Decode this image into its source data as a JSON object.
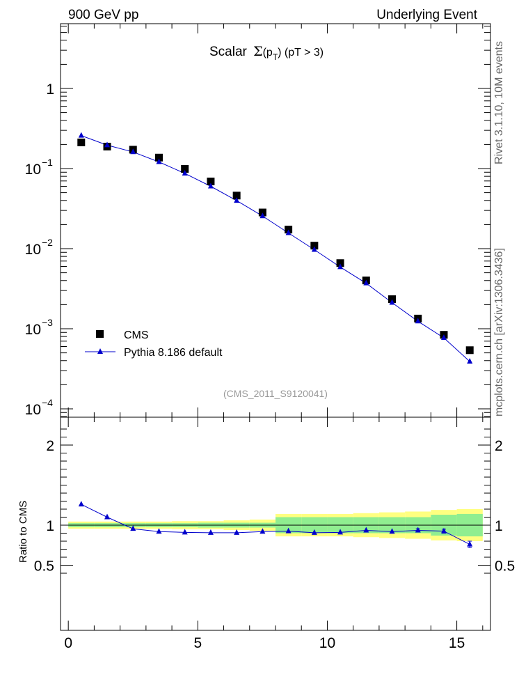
{
  "header": {
    "left_title": "900 GeV pp",
    "right_title": "Underlying Event"
  },
  "side_labels": {
    "rivet": "Rivet 3.1.10,  10M events",
    "mcplots": "mcplots.cern.ch [arXiv:1306.3436]"
  },
  "chart_data": [
    {
      "type": "scatter",
      "title_prefix": "Scalar ",
      "title_sigma": "Σ",
      "title_p": "(p",
      "title_sub": "T",
      "title_close": ")",
      "title_suffix": " (pT >  3)",
      "analysis_tag": "(CMS_2011_S9120041)",
      "ylog": true,
      "ylim": [
        0.0001,
        6.0
      ],
      "xlim": [
        -0.3,
        16.3
      ],
      "ytick_labels": {
        "y1": "1",
        "y10m1": "10",
        "y10m2": "10",
        "y10m3": "10",
        "y10m4": "10",
        "e1": "−1",
        "e2": "−2",
        "e3": "−3",
        "e4": "−4"
      },
      "legend": {
        "data_label": "CMS",
        "mc_label": "Pythia 8.186 default"
      },
      "x": [
        0.5,
        1.5,
        2.5,
        3.5,
        4.5,
        5.5,
        6.5,
        7.5,
        8.5,
        9.5,
        10.5,
        11.5,
        12.5,
        13.5,
        14.5,
        15.5
      ],
      "series": [
        {
          "name": "CMS",
          "style": "marker-square",
          "color": "#000000",
          "values": [
            0.212,
            0.188,
            0.172,
            0.137,
            0.099,
            0.069,
            0.046,
            0.0283,
            0.0173,
            0.0109,
            0.0066,
            0.00401,
            0.00234,
            0.00134,
            0.00084,
            0.00054
          ]
        },
        {
          "name": "Pythia 8.186 default",
          "style": "line-triangle",
          "color": "#0000cc",
          "values": [
            0.258,
            0.196,
            0.161,
            0.121,
            0.087,
            0.06,
            0.0397,
            0.0255,
            0.0157,
            0.0097,
            0.0059,
            0.0037,
            0.00212,
            0.00124,
            0.00077,
            0.00039
          ]
        }
      ]
    },
    {
      "type": "line",
      "ylabel": "Ratio to CMS",
      "ylim": [
        0.38,
        2.25
      ],
      "xlim": [
        -0.3,
        16.3
      ],
      "yticks": [
        "0.5",
        "1",
        "2"
      ],
      "xticks": [
        "0",
        "5",
        "10",
        "15"
      ],
      "x": [
        0.5,
        1.5,
        2.5,
        3.5,
        4.5,
        5.5,
        6.5,
        7.5,
        8.5,
        9.5,
        10.5,
        11.5,
        12.5,
        13.5,
        14.5,
        15.5
      ],
      "bin_edges": [
        0,
        1,
        2,
        3,
        4,
        5,
        6,
        7,
        8,
        9,
        10,
        11,
        12,
        13,
        14,
        15,
        16
      ],
      "band_colors": {
        "stat": "#90ee90",
        "total": "#ffff80"
      },
      "bands": {
        "stat": [
          0.025,
          0.025,
          0.025,
          0.025,
          0.025,
          0.03,
          0.03,
          0.03,
          0.1,
          0.1,
          0.1,
          0.1,
          0.1,
          0.1,
          0.13,
          0.14
        ],
        "total": [
          0.045,
          0.045,
          0.045,
          0.045,
          0.05,
          0.05,
          0.06,
          0.07,
          0.14,
          0.14,
          0.14,
          0.15,
          0.16,
          0.17,
          0.19,
          0.2
        ]
      },
      "series": [
        {
          "name": "Pythia 8.186 default",
          "color": "#0000cc",
          "values": [
            1.26,
            1.1,
            0.955,
            0.92,
            0.91,
            0.905,
            0.905,
            0.92,
            0.925,
            0.905,
            0.91,
            0.935,
            0.92,
            0.935,
            0.925,
            0.76
          ],
          "errors": [
            0,
            0,
            0,
            0,
            0,
            0,
            0,
            0,
            0,
            0,
            0,
            0,
            0,
            0.02,
            0.025,
            0.04
          ]
        }
      ]
    }
  ]
}
